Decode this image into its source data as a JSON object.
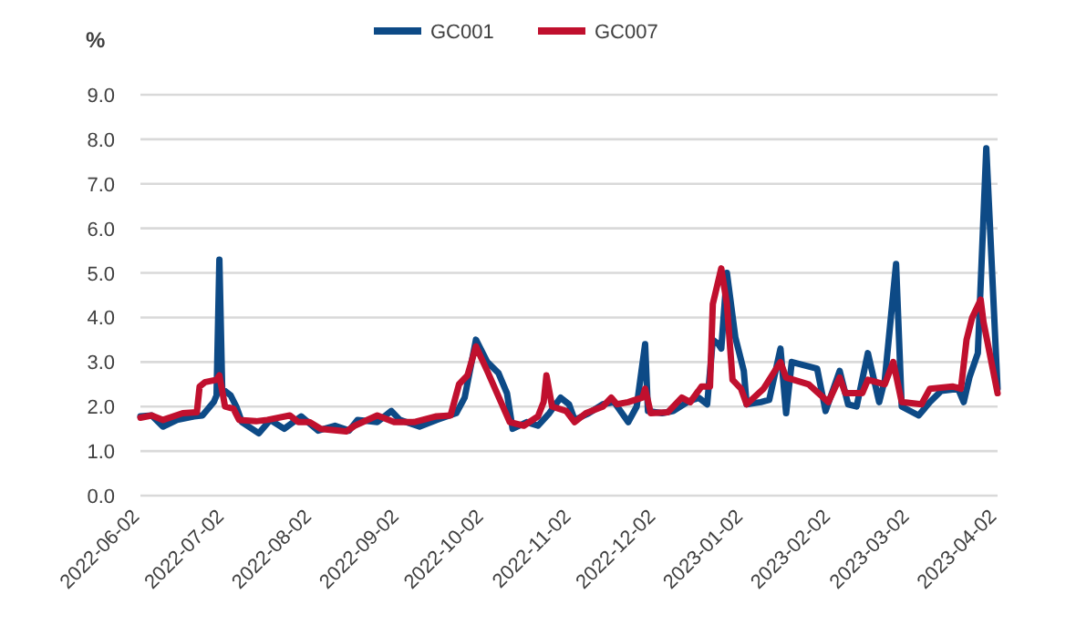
{
  "chart_data": {
    "type": "line",
    "ylabel": "%",
    "legend": "top",
    "grid": "y",
    "line_style": "solid",
    "marker": "none",
    "xlim": [
      "2022-06-02",
      "2023-04-02"
    ],
    "xticks": [
      "2022-06-02",
      "2022-07-02",
      "2022-08-02",
      "2022-09-02",
      "2022-10-02",
      "2022-11-02",
      "2022-12-02",
      "2023-01-02",
      "2023-02-02",
      "2023-03-02",
      "2023-04-02"
    ],
    "ylim": [
      0,
      9
    ],
    "yticks": [
      {
        "value": 0,
        "label": "0.0"
      },
      {
        "value": 1,
        "label": "1.0"
      },
      {
        "value": 2,
        "label": "2.0"
      },
      {
        "value": 3,
        "label": "3.0"
      },
      {
        "value": 4,
        "label": "4.0"
      },
      {
        "value": 5,
        "label": "5.0"
      },
      {
        "value": 6,
        "label": "6.0"
      },
      {
        "value": 7,
        "label": "7.0"
      },
      {
        "value": 8,
        "label": "8.0"
      },
      {
        "value": 9,
        "label": "9.0"
      }
    ],
    "series": [
      {
        "name": "GC001",
        "color": "#0d4a86",
        "x": [
          "2022-06-02",
          "2022-06-06",
          "2022-06-10",
          "2022-06-15",
          "2022-06-21",
          "2022-06-24",
          "2022-06-28",
          "2022-06-29",
          "2022-06-30",
          "2022-07-01",
          "2022-07-04",
          "2022-07-06",
          "2022-07-08",
          "2022-07-14",
          "2022-07-18",
          "2022-07-23",
          "2022-07-29",
          "2022-08-04",
          "2022-08-10",
          "2022-08-15",
          "2022-08-18",
          "2022-08-25",
          "2022-08-30",
          "2022-09-02",
          "2022-09-09",
          "2022-09-15",
          "2022-09-22",
          "2022-09-25",
          "2022-09-29",
          "2022-10-03",
          "2022-10-07",
          "2022-10-10",
          "2022-10-12",
          "2022-10-17",
          "2022-10-21",
          "2022-10-25",
          "2022-10-29",
          "2022-11-01",
          "2022-11-03",
          "2022-11-08",
          "2022-11-13",
          "2022-11-17",
          "2022-11-22",
          "2022-11-25",
          "2022-11-28",
          "2022-11-29",
          "2022-12-04",
          "2022-12-08",
          "2022-12-13",
          "2022-12-17",
          "2022-12-20",
          "2022-12-22",
          "2022-12-24",
          "2022-12-25",
          "2022-12-27",
          "2022-12-30",
          "2023-01-02",
          "2023-01-03",
          "2023-01-08",
          "2023-01-11",
          "2023-01-15",
          "2023-01-17",
          "2023-01-19",
          "2023-01-28",
          "2023-01-31",
          "2023-02-05",
          "2023-02-08",
          "2023-02-11",
          "2023-02-15",
          "2023-02-19",
          "2023-02-21",
          "2023-02-25",
          "2023-02-27",
          "2023-03-05",
          "2023-03-09",
          "2023-03-13",
          "2023-03-19",
          "2023-03-21",
          "2023-03-23",
          "2023-03-26",
          "2023-03-29",
          "2023-04-02"
        ],
        "values": [
          1.78,
          1.8,
          1.55,
          1.7,
          1.78,
          1.8,
          2.1,
          2.25,
          5.3,
          2.4,
          2.25,
          2.0,
          1.65,
          1.4,
          1.7,
          1.5,
          1.78,
          1.46,
          1.57,
          1.46,
          1.7,
          1.65,
          1.9,
          1.7,
          1.55,
          1.7,
          1.85,
          2.2,
          3.5,
          3.0,
          2.75,
          2.3,
          1.5,
          1.65,
          1.57,
          1.85,
          2.2,
          2.05,
          1.7,
          1.85,
          2.05,
          2.1,
          1.65,
          2.0,
          3.4,
          1.9,
          1.85,
          1.9,
          2.1,
          2.2,
          2.05,
          3.5,
          3.4,
          3.3,
          5.0,
          3.55,
          2.8,
          2.05,
          2.1,
          2.15,
          3.3,
          1.85,
          3.0,
          2.85,
          1.9,
          2.8,
          2.05,
          2.0,
          3.2,
          2.1,
          2.6,
          5.2,
          2.0,
          1.8,
          2.1,
          2.35,
          2.4,
          2.1,
          2.65,
          3.2,
          7.8,
          2.4
        ]
      },
      {
        "name": "GC007",
        "color": "#c0102e",
        "x": [
          "2022-06-02",
          "2022-06-06",
          "2022-06-10",
          "2022-06-17",
          "2022-06-22",
          "2022-06-23",
          "2022-06-25",
          "2022-06-29",
          "2022-06-30",
          "2022-07-02",
          "2022-07-05",
          "2022-07-07",
          "2022-07-13",
          "2022-07-17",
          "2022-07-25",
          "2022-07-28",
          "2022-08-01",
          "2022-08-05",
          "2022-08-14",
          "2022-08-17",
          "2022-08-25",
          "2022-08-31",
          "2022-09-07",
          "2022-09-15",
          "2022-09-20",
          "2022-09-23",
          "2022-09-26",
          "2022-09-29",
          "2022-10-03",
          "2022-10-11",
          "2022-10-16",
          "2022-10-21",
          "2022-10-23",
          "2022-10-24",
          "2022-10-26",
          "2022-10-31",
          "2022-11-03",
          "2022-11-07",
          "2022-11-13",
          "2022-11-16",
          "2022-11-18",
          "2022-11-22",
          "2022-11-27",
          "2022-11-28",
          "2022-11-30",
          "2022-12-06",
          "2022-12-11",
          "2022-12-14",
          "2022-12-18",
          "2022-12-21",
          "2022-12-22",
          "2022-12-25",
          "2022-12-27",
          "2022-12-29",
          "2023-01-01",
          "2023-01-03",
          "2023-01-09",
          "2023-01-15",
          "2023-01-17",
          "2023-01-25",
          "2023-02-01",
          "2023-02-05",
          "2023-02-07",
          "2023-02-13",
          "2023-02-15",
          "2023-02-21",
          "2023-02-24",
          "2023-02-27",
          "2023-03-06",
          "2023-03-09",
          "2023-03-17",
          "2023-03-20",
          "2023-03-22",
          "2023-03-24",
          "2023-03-27",
          "2023-03-28",
          "2023-04-02"
        ],
        "values": [
          1.75,
          1.8,
          1.7,
          1.85,
          1.87,
          2.45,
          2.55,
          2.6,
          2.7,
          2.0,
          1.95,
          1.7,
          1.67,
          1.7,
          1.8,
          1.65,
          1.65,
          1.5,
          1.44,
          1.57,
          1.8,
          1.65,
          1.65,
          1.78,
          1.8,
          2.5,
          2.7,
          3.35,
          2.8,
          1.65,
          1.57,
          1.78,
          2.1,
          2.7,
          2.0,
          1.9,
          1.65,
          1.85,
          2.0,
          2.2,
          2.05,
          2.1,
          2.2,
          2.4,
          1.85,
          1.87,
          2.2,
          2.1,
          2.45,
          2.45,
          4.3,
          5.1,
          4.3,
          2.6,
          2.4,
          2.05,
          2.4,
          3.0,
          2.65,
          2.5,
          2.1,
          2.65,
          2.3,
          2.3,
          2.6,
          2.5,
          3.0,
          2.1,
          2.05,
          2.4,
          2.45,
          2.4,
          3.5,
          4.0,
          4.4,
          3.9,
          2.3
        ]
      }
    ]
  }
}
